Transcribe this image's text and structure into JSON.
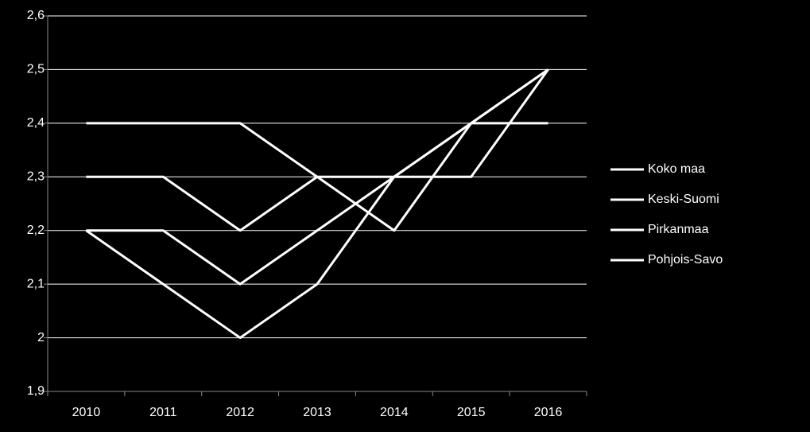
{
  "chart_data": {
    "type": "line",
    "categories": [
      "2010",
      "2011",
      "2012",
      "2013",
      "2014",
      "2015",
      "2016"
    ],
    "series": [
      {
        "name": "Koko maa",
        "color": "#ffffff",
        "values": [
          2.4,
          2.4,
          2.4,
          2.3,
          2.2,
          2.4,
          2.4
        ]
      },
      {
        "name": "Keski-Suomi",
        "color": "#ffffff",
        "values": [
          2.3,
          2.3,
          2.2,
          2.3,
          2.3,
          2.3,
          2.5
        ]
      },
      {
        "name": "Pirkanmaa",
        "color": "#ffffff",
        "values": [
          2.2,
          2.2,
          2.1,
          2.2,
          2.3,
          2.4,
          2.5
        ]
      },
      {
        "name": "Pohjois-Savo",
        "color": "#ffffff",
        "values": [
          2.2,
          2.1,
          2.0,
          2.1,
          2.3,
          2.4,
          2.5
        ]
      }
    ],
    "ylim": [
      1.9,
      2.6
    ],
    "yticks": [
      {
        "value": 1.9,
        "label": "1,9"
      },
      2,
      {
        "value": 2.1,
        "label": "2,1"
      },
      {
        "value": 2.2,
        "label": "2,2"
      },
      {
        "value": 2.3,
        "label": "2,3"
      },
      {
        "value": 2.4,
        "label": "2,4"
      },
      {
        "value": 2.5,
        "label": "2,5"
      },
      {
        "value": 2.6,
        "label": "2,6"
      }
    ],
    "grid": true,
    "legend": "right"
  }
}
